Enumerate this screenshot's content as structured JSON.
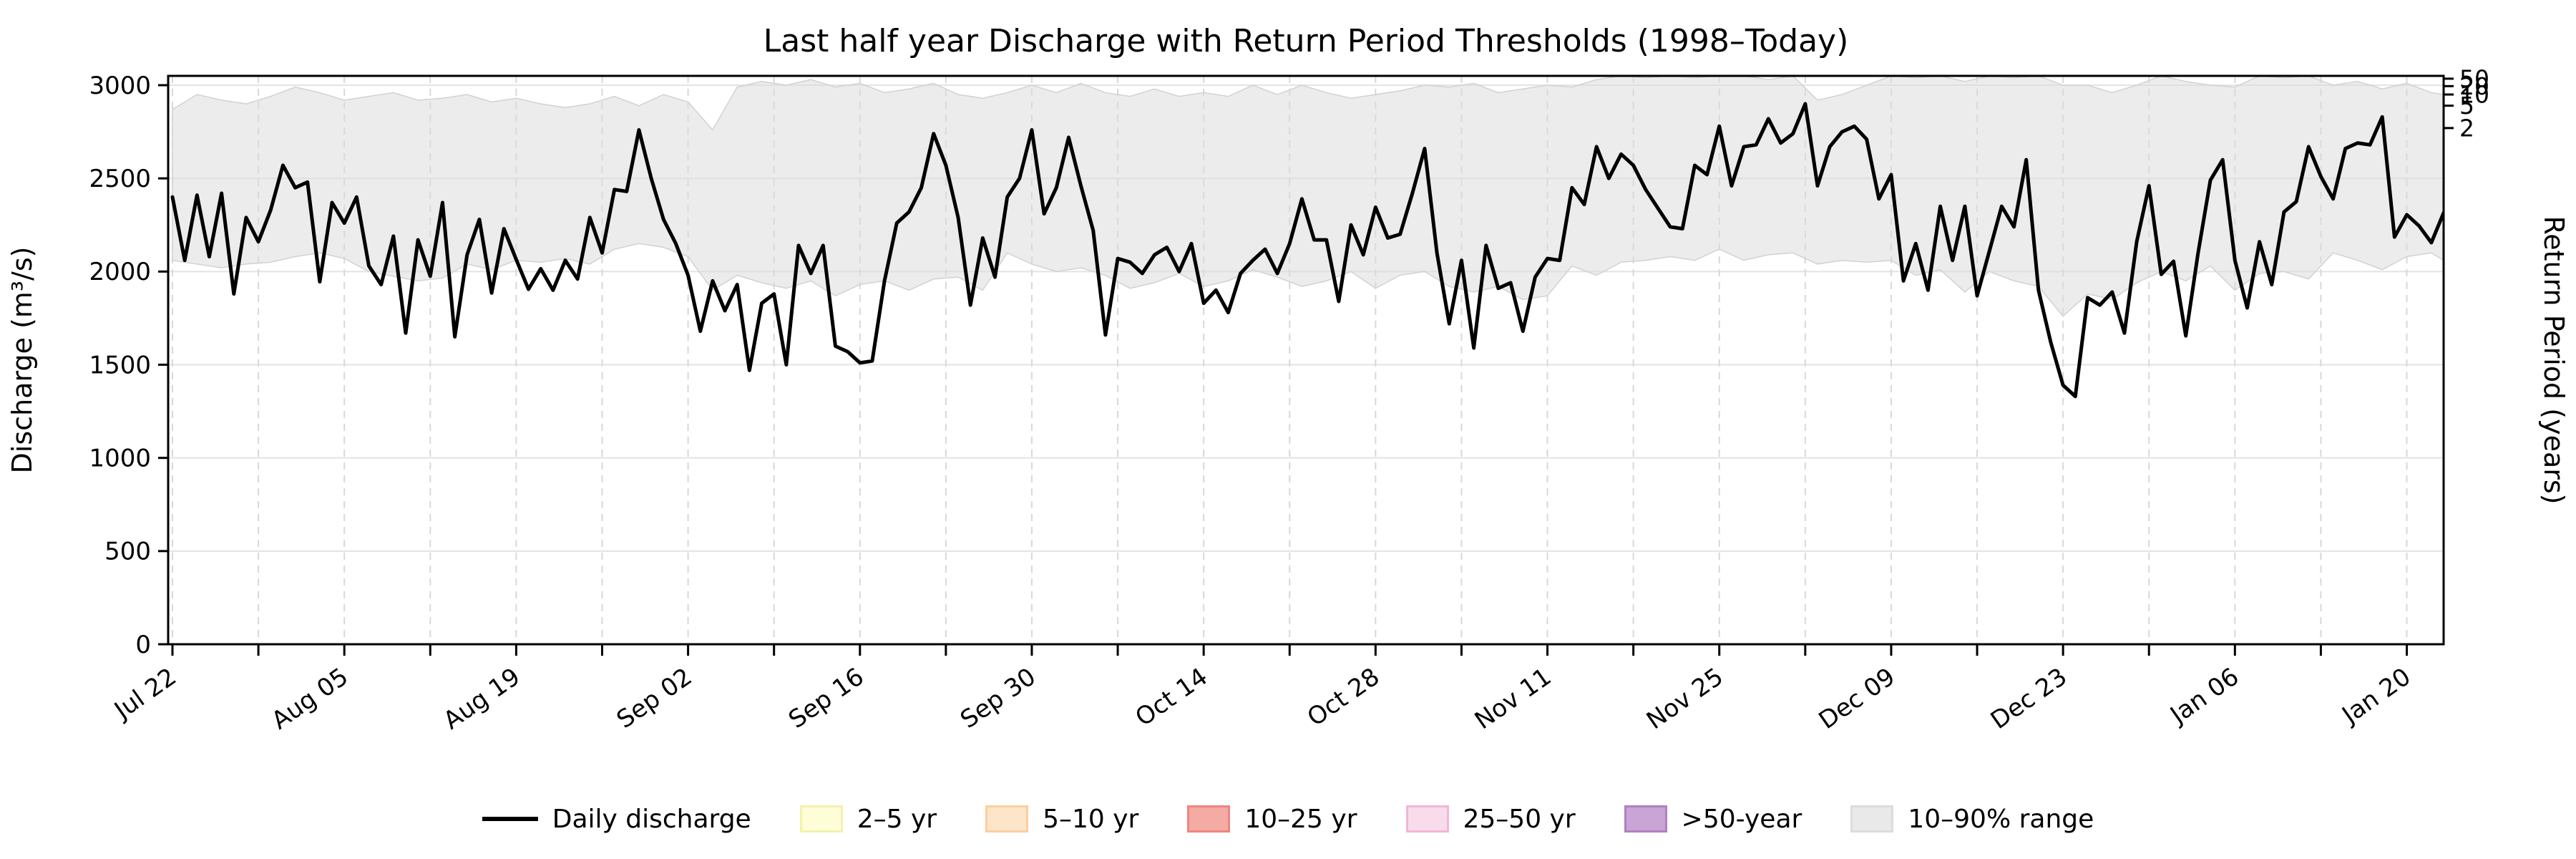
{
  "title": "Last half year Discharge with Return Period Thresholds (1998–Today)",
  "axes": {
    "left_label": "Discharge (m³/s)",
    "right_label": "Return Period (years)",
    "y_tick_labels": [
      "0",
      "500",
      "1000",
      "1500",
      "2000",
      "2500",
      "3000"
    ]
  },
  "legend": {
    "items": [
      {
        "type": "line",
        "color": "#000000",
        "border": "#000000",
        "label": "Daily discharge"
      },
      {
        "type": "patch",
        "color": "#fdfdd8",
        "border": "#f2f2ac",
        "label": "2–5 yr"
      },
      {
        "type": "patch",
        "color": "#fde5c9",
        "border": "#fbce9e",
        "label": "5–10 yr"
      },
      {
        "type": "patch",
        "color": "#f3aba4",
        "border": "#ec877e",
        "label": "10–25 yr"
      },
      {
        "type": "patch",
        "color": "#f9dcec",
        "border": "#f2b6d7",
        "label": "25–50 yr"
      },
      {
        "type": "patch",
        "color": "#c8a5d4",
        "border": "#b080c2",
        "label": ">50-year"
      },
      {
        "type": "patch",
        "color": "#e9e9e9",
        "border": "#dcdcdc",
        "label": "10–90% range"
      }
    ]
  },
  "chart_data": {
    "type": "line",
    "title": "Last half year Discharge with Return Period Thresholds (1998–Today)",
    "xlabel": "",
    "ylabel": "Discharge (m³/s)",
    "ylabel_right": "Return Period (years)",
    "ylim": [
      0,
      3050
    ],
    "y_ticks": [
      0,
      500,
      1000,
      1500,
      2000,
      2500,
      3000
    ],
    "grid": true,
    "x_start_date": "Jul 22",
    "x_tick_interval_days": 7,
    "x_label_interval_days": 14,
    "x_tick_labels": [
      "Jul 22",
      "Aug 05",
      "Aug 19",
      "Sep 02",
      "Sep 16",
      "Sep 30",
      "Oct 14",
      "Oct 28",
      "Nov 11",
      "Nov 25",
      "Dec 09",
      "Dec 23",
      "Jan 06",
      "Jan 20"
    ],
    "return_period_ticks": [
      {
        "return_period": 2,
        "discharge": 2770
      },
      {
        "return_period": 5,
        "discharge": 2890
      },
      {
        "return_period": 10,
        "discharge": 2950
      },
      {
        "return_period": 20,
        "discharge": 2995
      },
      {
        "return_period": 50,
        "discharge": 3035
      }
    ],
    "series": [
      {
        "name": "Daily discharge",
        "color": "#000000",
        "values": [
          2400,
          2060,
          2410,
          2080,
          2420,
          1880,
          2290,
          2160,
          2330,
          2570,
          2450,
          2480,
          1945,
          2370,
          2260,
          2400,
          2030,
          1930,
          2190,
          1670,
          2170,
          1975,
          2370,
          1650,
          2090,
          2280,
          1885,
          2230,
          2065,
          1905,
          2015,
          1900,
          2060,
          1960,
          2290,
          2100,
          2440,
          2430,
          2760,
          2500,
          2280,
          2150,
          1980,
          1680,
          1950,
          1790,
          1930,
          1470,
          1830,
          1880,
          1500,
          2140,
          1990,
          2140,
          1600,
          1570,
          1510,
          1520,
          1950,
          2260,
          2320,
          2450,
          2740,
          2570,
          2290,
          1820,
          2180,
          1970,
          2400,
          2500,
          2760,
          2310,
          2450,
          2720,
          2460,
          2220,
          1660,
          2070,
          2050,
          1990,
          2090,
          2130,
          2000,
          2150,
          1830,
          1900,
          1780,
          1990,
          2060,
          2120,
          1990,
          2150,
          2390,
          2170,
          2170,
          1840,
          2250,
          2090,
          2345,
          2180,
          2200,
          2420,
          2660,
          2100,
          1720,
          2060,
          1590,
          2140,
          1910,
          1940,
          1680,
          1970,
          2070,
          2060,
          2450,
          2360,
          2670,
          2500,
          2630,
          2570,
          2440,
          2340,
          2240,
          2230,
          2570,
          2520,
          2780,
          2460,
          2670,
          2680,
          2820,
          2690,
          2740,
          2900,
          2460,
          2670,
          2750,
          2780,
          2710,
          2390,
          2520,
          1950,
          2150,
          1900,
          2350,
          2060,
          2350,
          1870,
          2110,
          2350,
          2240,
          2600,
          1900,
          1620,
          1390,
          1330,
          1860,
          1820,
          1890,
          1670,
          2160,
          2460,
          1985,
          2055,
          1655,
          2100,
          2490,
          2600,
          2060,
          1805,
          2160,
          1930,
          2320,
          2375,
          2670,
          2510,
          2390,
          2660,
          2690,
          2680,
          2830,
          2185,
          2305,
          2245,
          2155,
          2315
        ]
      }
    ],
    "band": {
      "name": "10–90% range",
      "fill": "#dcdcdc",
      "x": [
        0,
        2,
        4,
        6,
        8,
        10,
        12,
        14,
        16,
        18,
        20,
        22,
        24,
        26,
        28,
        30,
        32,
        34,
        36,
        38,
        40,
        42,
        44,
        46,
        48,
        50,
        52,
        54,
        56,
        58,
        60,
        62,
        64,
        66,
        68,
        70,
        72,
        74,
        76,
        78,
        80,
        82,
        84,
        86,
        88,
        90,
        92,
        94,
        96,
        98,
        100,
        102,
        104,
        106,
        108,
        110,
        112,
        114,
        116,
        118,
        120,
        122,
        124,
        126,
        128,
        130,
        132,
        134,
        136,
        138,
        140,
        142,
        144,
        146,
        148,
        150,
        152,
        154,
        156,
        158,
        160,
        162,
        164,
        166,
        168,
        170,
        172,
        174,
        176,
        178,
        180,
        182,
        184,
        185
      ],
      "lower": [
        2060,
        2040,
        2020,
        2040,
        2050,
        2080,
        2100,
        2070,
        2000,
        1975,
        1950,
        1965,
        2040,
        2010,
        2060,
        2050,
        2070,
        2040,
        2120,
        2150,
        2130,
        2080,
        1900,
        1980,
        1940,
        1910,
        1950,
        1870,
        1930,
        1950,
        1900,
        1960,
        1970,
        1900,
        2100,
        2040,
        2000,
        2020,
        1980,
        1910,
        1940,
        1990,
        1920,
        1950,
        2010,
        1970,
        1920,
        1950,
        2000,
        1910,
        1980,
        2000,
        1920,
        1890,
        1920,
        1850,
        1870,
        2030,
        1980,
        2050,
        2060,
        2080,
        2060,
        2120,
        2060,
        2090,
        2100,
        2040,
        2060,
        2050,
        2060,
        1980,
        2010,
        1890,
        2000,
        1950,
        1920,
        1760,
        1880,
        1850,
        1940,
        2000,
        1950,
        2030,
        1900,
        1990,
        2000,
        1960,
        2100,
        2060,
        2010,
        2080,
        2100,
        2060
      ],
      "upper": [
        2870,
        2950,
        2920,
        2900,
        2940,
        2990,
        2960,
        2920,
        2940,
        2960,
        2920,
        2930,
        2950,
        2910,
        2930,
        2900,
        2880,
        2900,
        2940,
        2890,
        2950,
        2910,
        2760,
        2990,
        3020,
        3000,
        3030,
        2990,
        3010,
        2960,
        2980,
        3010,
        2950,
        2930,
        2960,
        3000,
        2960,
        3010,
        2960,
        2940,
        2980,
        2940,
        2960,
        2940,
        3000,
        2950,
        3000,
        2960,
        2930,
        2950,
        2970,
        3000,
        2990,
        3010,
        2960,
        2980,
        3000,
        2990,
        3030,
        3050,
        3040,
        3050,
        3040,
        3050,
        3050,
        3030,
        3050,
        2920,
        2950,
        3000,
        3050,
        3040,
        3050,
        3020,
        3050,
        3040,
        3050,
        3000,
        3000,
        2960,
        3000,
        3050,
        3020,
        3000,
        2990,
        3050,
        3040,
        3050,
        3000,
        3020,
        2980,
        3010,
        2960,
        2950
      ]
    }
  }
}
